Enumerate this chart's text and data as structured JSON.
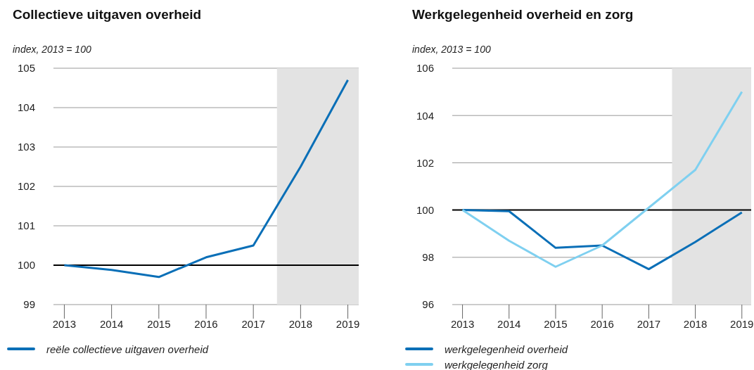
{
  "chart_data": [
    {
      "type": "line",
      "title": "Collectieve uitgaven overheid",
      "ylabel": "index, 2013 = 100",
      "x": [
        2013,
        2014,
        2015,
        2016,
        2017,
        2018,
        2019
      ],
      "series": [
        {
          "name": "reële collectieve uitgaven overheid",
          "color": "#0a6fb7",
          "values": [
            100,
            99.88,
            99.7,
            100.2,
            100.5,
            102.5,
            104.7
          ]
        }
      ],
      "xlim": [
        2012.77,
        2019.23
      ],
      "xticks": [
        2013,
        2014,
        2015,
        2016,
        2017,
        2018,
        2019
      ],
      "ylim": [
        99,
        105
      ],
      "yticks": [
        99,
        100,
        101,
        102,
        103,
        104,
        105
      ],
      "grid": "y",
      "legend": "bottom",
      "marker": "none",
      "line_style": "solid",
      "ref_lines": [
        {
          "axis": "y",
          "value": 100,
          "color": "#000000"
        }
      ],
      "bands": [
        {
          "axis": "x",
          "from": 2017.5,
          "to": 2019.23,
          "color": "#e3e3e3"
        }
      ]
    },
    {
      "type": "line",
      "title": "Werkgelegenheid overheid en zorg",
      "ylabel": "index, 2013 = 100",
      "x": [
        2013,
        2014,
        2015,
        2016,
        2017,
        2018,
        2019
      ],
      "series": [
        {
          "name": "werkgelegenheid overheid",
          "color": "#0a6fb7",
          "values": [
            100,
            99.95,
            98.4,
            98.5,
            97.5,
            98.65,
            99.9
          ]
        },
        {
          "name": "werkgelegenheid zorg",
          "color": "#7fd0f0",
          "values": [
            100,
            98.7,
            97.6,
            98.5,
            100.1,
            101.7,
            105.0
          ]
        }
      ],
      "xlim": [
        2012.78,
        2019.2
      ],
      "xticks": [
        2013,
        2014,
        2015,
        2016,
        2017,
        2018,
        2019
      ],
      "ylim": [
        96,
        106
      ],
      "yticks": [
        96,
        98,
        100,
        102,
        104,
        106
      ],
      "grid": "y",
      "legend": "bottom",
      "marker": "none",
      "line_style": "solid",
      "ref_lines": [
        {
          "axis": "y",
          "value": 100,
          "color": "#000000"
        }
      ],
      "bands": [
        {
          "axis": "x",
          "from": 2017.5,
          "to": 2019.2,
          "color": "#e3e3e3"
        }
      ]
    }
  ]
}
